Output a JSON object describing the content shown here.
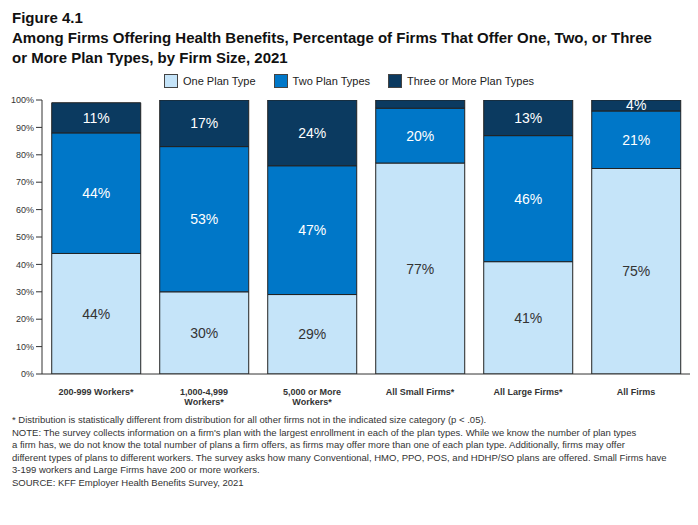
{
  "chart_data": {
    "type": "bar",
    "title": "Figure 4.1",
    "subtitle": "Among Firms Offering Health Benefits, Percentage of Firms That Offer One, Two, or Three or More Plan Types, by Firm Size, 2021",
    "categories": [
      "200-999 Workers*",
      "1,000-4,999 Workers*",
      "5,000 or More Workers*",
      "All Small Firms*",
      "All Large Firms*",
      "All Firms"
    ],
    "series": [
      {
        "name": "One Plan Type",
        "color": "#c5e4f9",
        "values": [
          44,
          30,
          29,
          77,
          41,
          75
        ],
        "value_labels": [
          "44%",
          "30%",
          "29%",
          "77%",
          "41%",
          "75%"
        ]
      },
      {
        "name": "Two Plan Types",
        "color": "#0077c8",
        "values": [
          44,
          53,
          47,
          20,
          46,
          21
        ],
        "value_labels": [
          "44%",
          "53%",
          "47%",
          "20%",
          "46%",
          "21%"
        ]
      },
      {
        "name": "Three or More Plan Types",
        "color": "#0b3a60",
        "values": [
          11,
          17,
          24,
          3,
          13,
          4
        ],
        "value_labels": [
          "11%",
          "17%",
          "24%",
          null,
          "13%",
          "4%"
        ]
      }
    ],
    "ylim": [
      0,
      100
    ],
    "yticks": [
      {
        "value": 0,
        "label": "0%"
      },
      {
        "value": 10,
        "label": "10%"
      },
      {
        "value": 20,
        "label": "20%"
      },
      {
        "value": 30,
        "label": "30%"
      },
      {
        "value": 40,
        "label": "40%"
      },
      {
        "value": 50,
        "label": "50%"
      },
      {
        "value": 60,
        "label": "60%"
      },
      {
        "value": 70,
        "label": "70%"
      },
      {
        "value": 80,
        "label": "80%"
      },
      {
        "value": 90,
        "label": "90%"
      },
      {
        "value": 100,
        "label": "100%"
      }
    ],
    "stacked": true,
    "data_labels": true,
    "grid": false,
    "legend": "top",
    "notes": [
      "* Distribution is statistically different from distribution for all other firms not in the indicated size category (p < .05).",
      "NOTE: The survey collects information on a firm's plan with the largest enrollment in each of the plan types. While we know the number of plan types",
      "a firm has, we do not know the total number of plans a firm offers, as firms may offer more than one of each plan type. Additionally, firms may offer",
      "different types of plans to different workers. The survey asks how many Conventional, HMO, PPO, POS, and HDHP/SO plans are offered. Small Firms have",
      "3-199 workers and Large Firms have 200 or more workers.",
      "SOURCE: KFF Employer Health Benefits Survey, 2021"
    ]
  }
}
